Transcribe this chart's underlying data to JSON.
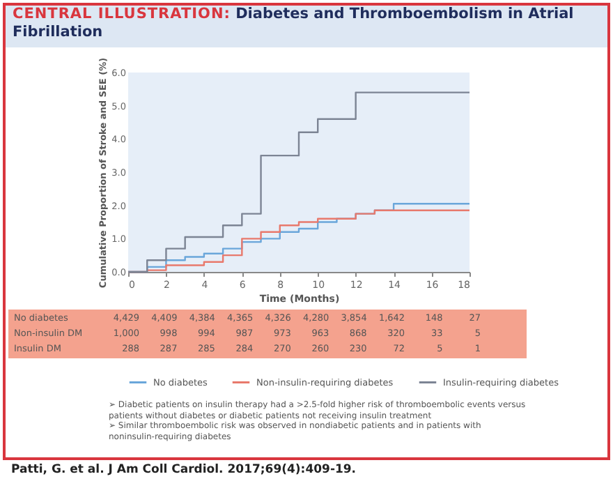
{
  "chart_data": {
    "type": "step",
    "title": "CENTRAL ILLUSTRATION: Diabetes and Thromboembolism in Atrial Fibrillation",
    "xlabel": "Time (Months)",
    "ylabel": "Cumulative Proportion of Stroke and SEE (%)",
    "x": [
      0,
      1,
      2,
      3,
      4,
      5,
      6,
      7,
      8,
      9,
      10,
      11,
      12,
      13,
      14,
      18
    ],
    "series": [
      {
        "name": "No diabetes",
        "color": "#6aa6da",
        "values": [
          0,
          0.15,
          0.35,
          0.45,
          0.55,
          0.7,
          0.9,
          1.0,
          1.2,
          1.3,
          1.5,
          1.6,
          1.75,
          1.85,
          2.05,
          2.05
        ]
      },
      {
        "name": "Non-insulin-requiring diabetes",
        "color": "#e8796c",
        "values": [
          0,
          0.05,
          0.2,
          0.2,
          0.3,
          0.5,
          1.0,
          1.2,
          1.4,
          1.5,
          1.6,
          1.6,
          1.75,
          1.85,
          1.85,
          1.85
        ]
      },
      {
        "name": "Insulin-requiring diabetes",
        "color": "#7c8494",
        "values": [
          0,
          0.35,
          0.7,
          1.05,
          1.05,
          1.4,
          1.75,
          3.5,
          3.5,
          4.2,
          4.6,
          4.6,
          5.4,
          5.4,
          5.4,
          5.4
        ]
      }
    ],
    "xlim": [
      0,
      18
    ],
    "xticks": [
      0,
      2,
      4,
      6,
      8,
      10,
      12,
      14,
      16,
      18
    ],
    "ylim": [
      0,
      6
    ],
    "yticks": [
      {
        "value": 0,
        "label": "0.0"
      },
      {
        "value": 1,
        "label": "1.0"
      },
      {
        "value": 2,
        "label": "2.0"
      },
      {
        "value": 3,
        "label": "3.0"
      },
      {
        "value": 4,
        "label": "4.0"
      },
      {
        "value": 5,
        "label": "5.0"
      },
      {
        "value": 6,
        "label": "6.0"
      }
    ],
    "grid": false,
    "legend": "bottom",
    "annotations": [
      "No diabetes",
      "4,429",
      "4,409",
      "4,384",
      "4,365",
      "4,326",
      "4,280",
      "3,854",
      "1,642",
      "148",
      "27",
      "Non-insulin DM",
      "1,000",
      "998",
      "994",
      "987",
      "973",
      "963",
      "868",
      "320",
      "33",
      "5",
      "Insulin DM",
      "288",
      "287",
      "285",
      "284",
      "270",
      "260",
      "230",
      "72",
      "5",
      "1",
      "➢ Diabetic patients on insulin therapy had a >2.5-fold higher risk of thromboembolic events versus patients without diabetes or diabetic patients not receiving insulin treatment",
      "➢ Similar thromboembolic risk was observed in nondiabetic patients and in patients with noninsulin-requiring diabetes",
      "Patti, G. et al. J Am Coll Cardiol. 2017;69(4):409-19."
    ]
  }
}
